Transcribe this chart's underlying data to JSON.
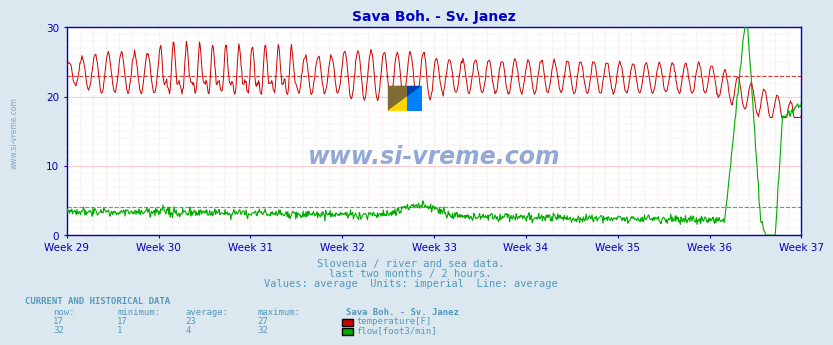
{
  "title": "Sava Boh. - Sv. Janez",
  "title_color": "#0000cc",
  "background_color": "#dce8f0",
  "plot_bg_color": "#ffffff",
  "grid_color_h": "#dddddd",
  "grid_color_v": "#ffbbbb",
  "axis_color": "#0000bb",
  "text_color": "#5599bb",
  "ylim": [
    0,
    30
  ],
  "yticks": [
    0,
    10,
    20,
    30
  ],
  "week_labels": [
    "Week 29",
    "Week 30",
    "Week 31",
    "Week 32",
    "Week 33",
    "Week 34",
    "Week 35",
    "Week 36",
    "Week 37"
  ],
  "temp_color": "#cc0000",
  "flow_color": "#00aa00",
  "temp_avg": 23,
  "flow_avg_val": 4,
  "temp_min": 17,
  "temp_max": 27,
  "temp_now": 17,
  "flow_min": 1,
  "flow_max": 32,
  "flow_now": 32,
  "flow_avg": 4,
  "subtitle1": "Slovenia / river and sea data.",
  "subtitle2": "last two months / 2 hours.",
  "subtitle3": "Values: average  Units: imperial  Line: average",
  "watermark": "www.si-vreme.com",
  "left_watermark": "www.si-vreme.com",
  "n_points": 1008,
  "logo_yellow": "#FFD700",
  "logo_blue": "#007FFF",
  "logo_dark_blue": "#000088"
}
